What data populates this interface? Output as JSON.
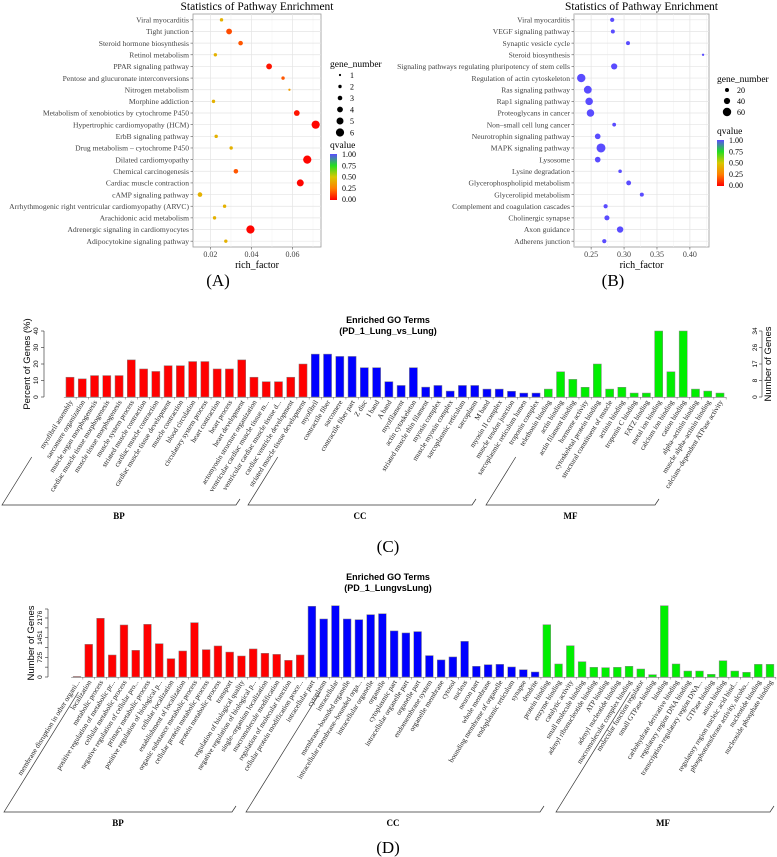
{
  "captions": {
    "a": "(A)",
    "b": "(B)",
    "c": "(C)",
    "d": "(D)"
  },
  "chart_data": [
    {
      "id": "A",
      "type": "scatter",
      "title": "Statistics of Pathway Enrichment",
      "xlabel": "rich_factor",
      "xlim": [
        0.0115,
        0.0739
      ],
      "xticks": [
        0.02,
        0.04,
        0.06
      ],
      "xtick_labels": [
        "0.02",
        "0.04",
        "0.06"
      ],
      "size_legend_title": "gene_number",
      "size_legend": [
        1,
        2,
        3,
        4,
        5,
        6
      ],
      "color_legend_title": "qvalue",
      "color_legend": [
        "1.00",
        "0.75",
        "0.50",
        "0.25",
        "0.00"
      ],
      "grid": true,
      "points": [
        {
          "pathway": "Viral myocarditis",
          "rich_factor": 0.0254,
          "gene_number": 2,
          "qvalue": 0.42
        },
        {
          "pathway": "Tight junction",
          "rich_factor": 0.0291,
          "gene_number": 4,
          "qvalue": 0.15
        },
        {
          "pathway": "Steroid hormone biosynthesis",
          "rich_factor": 0.0347,
          "gene_number": 3,
          "qvalue": 0.17
        },
        {
          "pathway": "Retinol metabolism",
          "rich_factor": 0.0224,
          "gene_number": 2,
          "qvalue": 0.42
        },
        {
          "pathway": "PPAR signaling pathway",
          "rich_factor": 0.0486,
          "gene_number": 4,
          "qvalue": 0.04
        },
        {
          "pathway": "Pentose and glucuronate interconversions",
          "rich_factor": 0.0554,
          "gene_number": 2,
          "qvalue": 0.17
        },
        {
          "pathway": "Nitrogen metabolism",
          "rich_factor": 0.0585,
          "gene_number": 1,
          "qvalue": 0.35
        },
        {
          "pathway": "Morphine addiction",
          "rich_factor": 0.0215,
          "gene_number": 2,
          "qvalue": 0.42
        },
        {
          "pathway": "Metabolism of xenobiotics by cytochrome P450",
          "rich_factor": 0.0621,
          "gene_number": 4,
          "qvalue": 0.04
        },
        {
          "pathway": "Hypertrophic cardiomyopathy (HCM)",
          "rich_factor": 0.0713,
          "gene_number": 6,
          "qvalue": 0.01
        },
        {
          "pathway": "ErbB signaling pathway",
          "rich_factor": 0.0228,
          "gene_number": 2,
          "qvalue": 0.42
        },
        {
          "pathway": "Drug metabolism – cytochrome P450",
          "rich_factor": 0.0301,
          "gene_number": 2,
          "qvalue": 0.42
        },
        {
          "pathway": "Dilated cardiomyopathy",
          "rich_factor": 0.0672,
          "gene_number": 6,
          "qvalue": 0.01
        },
        {
          "pathway": "Chemical carcinogenesis",
          "rich_factor": 0.0324,
          "gene_number": 3,
          "qvalue": 0.17
        },
        {
          "pathway": "Cardiac muscle contraction",
          "rich_factor": 0.0638,
          "gene_number": 5,
          "qvalue": 0.01
        },
        {
          "pathway": "cAMP signaling pathway",
          "rich_factor": 0.0149,
          "gene_number": 3,
          "qvalue": 0.42
        },
        {
          "pathway": "Arrhythmogenic right ventricular cardiomyopathy (ARVC)",
          "rich_factor": 0.0269,
          "gene_number": 2,
          "qvalue": 0.42
        },
        {
          "pathway": "Arachidonic acid metabolism",
          "rich_factor": 0.022,
          "gene_number": 2,
          "qvalue": 0.42
        },
        {
          "pathway": "Adrenergic signaling in cardiomyocytes",
          "rich_factor": 0.0395,
          "gene_number": 6,
          "qvalue": 0.01
        },
        {
          "pathway": "Adipocytokine signaling pathway",
          "rich_factor": 0.0275,
          "gene_number": 2,
          "qvalue": 0.42
        }
      ]
    },
    {
      "id": "B",
      "type": "scatter",
      "title": "Statistics of Pathway Enrichment",
      "xlabel": "rich_factor",
      "xlim": [
        0.224,
        0.429
      ],
      "xticks": [
        0.25,
        0.3,
        0.35,
        0.4
      ],
      "xtick_labels": [
        "0.25",
        "0.30",
        "0.35",
        "0.40"
      ],
      "size_legend_title": "gene_number",
      "size_legend": [
        20,
        40,
        60
      ],
      "color_legend_title": "qvalue",
      "color_legend": [
        "1.00",
        "0.75",
        "0.50",
        "0.25",
        "0.00"
      ],
      "grid": true,
      "points": [
        {
          "pathway": "Viral myocarditis",
          "rich_factor": 0.282,
          "gene_number": 22,
          "qvalue": 1.0
        },
        {
          "pathway": "VEGF signaling pathway",
          "rich_factor": 0.283,
          "gene_number": 20,
          "qvalue": 1.0
        },
        {
          "pathway": "Synaptic vesicle cycle",
          "rich_factor": 0.306,
          "gene_number": 20,
          "qvalue": 1.0
        },
        {
          "pathway": "Steroid biosynthesis",
          "rich_factor": 0.42,
          "gene_number": 5,
          "qvalue": 1.0
        },
        {
          "pathway": "Signaling pathways regulating pluripotency of stem cells",
          "rich_factor": 0.285,
          "gene_number": 40,
          "qvalue": 1.0
        },
        {
          "pathway": "Regulation of actin cytoskeleton",
          "rich_factor": 0.235,
          "gene_number": 60,
          "qvalue": 1.0
        },
        {
          "pathway": "Ras signaling pathway",
          "rich_factor": 0.245,
          "gene_number": 55,
          "qvalue": 1.0
        },
        {
          "pathway": "Rap1 signaling pathway",
          "rich_factor": 0.247,
          "gene_number": 52,
          "qvalue": 1.0
        },
        {
          "pathway": "Proteoglycans in cancer",
          "rich_factor": 0.249,
          "gene_number": 52,
          "qvalue": 1.0
        },
        {
          "pathway": "Non–small cell lung cancer",
          "rich_factor": 0.285,
          "gene_number": 18,
          "qvalue": 1.0
        },
        {
          "pathway": "Neurotrophin signaling pathway",
          "rich_factor": 0.26,
          "gene_number": 35,
          "qvalue": 1.0
        },
        {
          "pathway": "MAPK signaling pathway",
          "rich_factor": 0.265,
          "gene_number": 65,
          "qvalue": 1.0
        },
        {
          "pathway": "Lysosome",
          "rich_factor": 0.26,
          "gene_number": 35,
          "qvalue": 1.0
        },
        {
          "pathway": "Lysine degradation",
          "rich_factor": 0.294,
          "gene_number": 16,
          "qvalue": 1.0
        },
        {
          "pathway": "Glycerophospholipid metabolism",
          "rich_factor": 0.307,
          "gene_number": 28,
          "qvalue": 1.0
        },
        {
          "pathway": "Glycerolipid metabolism",
          "rich_factor": 0.327,
          "gene_number": 20,
          "qvalue": 1.0
        },
        {
          "pathway": "Complement and coagulation cascades",
          "rich_factor": 0.272,
          "gene_number": 22,
          "qvalue": 1.0
        },
        {
          "pathway": "Cholinergic synapse",
          "rich_factor": 0.274,
          "gene_number": 30,
          "qvalue": 1.0
        },
        {
          "pathway": "Axon guidance",
          "rich_factor": 0.294,
          "gene_number": 42,
          "qvalue": 1.0
        },
        {
          "pathway": "Adherens junction",
          "rich_factor": 0.27,
          "gene_number": 22,
          "qvalue": 1.0
        }
      ]
    },
    {
      "id": "C",
      "type": "bar",
      "title": "Enriched GO Terms",
      "subtitle": "(PD_1_Lung_vs_Lung)",
      "ylabel": "Percent of Genes (%)",
      "ylabel_right": "Number of Genes",
      "ylim": [
        0,
        40
      ],
      "yticks": [
        "0",
        "10",
        "20",
        "30",
        "40"
      ],
      "yticks_right": [
        "0",
        "8",
        "17",
        "26",
        "34"
      ],
      "groups": [
        {
          "name": "BP",
          "color": "#ff0000",
          "bars": [
            [
              "myofibril assembly",
              12
            ],
            [
              "sarcomere organization",
              11
            ],
            [
              "muscle organ morphogenesis",
              13
            ],
            [
              "cardiac muscle tissue morphogenesis",
              13
            ],
            [
              "muscle tissue morphogenesis",
              13
            ],
            [
              "muscle system process",
              22.5
            ],
            [
              "striated muscle contraction",
              17
            ],
            [
              "cardiac muscle contraction",
              15.5
            ],
            [
              "cardiac muscle tissue development",
              19
            ],
            [
              "muscle contraction",
              19
            ],
            [
              "blood circulation",
              21.5
            ],
            [
              "circulatory system process",
              21.5
            ],
            [
              "heart contraction",
              17
            ],
            [
              "heart process",
              17
            ],
            [
              "heart development",
              22.5
            ],
            [
              "actomyosin structure organization",
              12
            ],
            [
              "ventricular cardiac muscle tissue m...",
              9.3
            ],
            [
              "ventricular cardiac muscle tissue d...",
              9.3
            ],
            [
              "cardiac ventricle development",
              12
            ],
            [
              "striated muscle tissue development",
              20
            ]
          ]
        },
        {
          "name": "CC",
          "color": "#0000ff",
          "bars": [
            [
              "myofibril",
              26
            ],
            [
              "contractile fiber",
              26
            ],
            [
              "sarcomere",
              24.6
            ],
            [
              "contractile fiber part",
              24.6
            ],
            [
              "Z disc",
              17.8
            ],
            [
              "I band",
              17.8
            ],
            [
              "A band",
              9.3
            ],
            [
              "myofilament",
              7
            ],
            [
              "actin cytoskeleton",
              17.8
            ],
            [
              "striated muscle thin filament",
              6
            ],
            [
              "myosin complex",
              7
            ],
            [
              "muscle myosin complex",
              3.6
            ],
            [
              "sarcoplasmic reticulum",
              7
            ],
            [
              "sarcoplasm",
              7
            ],
            [
              "M band",
              4.8
            ],
            [
              "myosin II complex",
              4.8
            ],
            [
              "muscle tendon junction",
              3.5
            ],
            [
              "sarcoplasmic reticulum lumen",
              2.4
            ],
            [
              "troponin complex",
              2.4
            ]
          ]
        },
        {
          "name": "MF",
          "color": "#00ee00",
          "bars": [
            [
              "telethonin binding",
              4.8
            ],
            [
              "actin binding",
              15.3
            ],
            [
              "actin filament binding",
              10.7
            ],
            [
              "hormone activity",
              5.9
            ],
            [
              "cytoskeletal protein binding",
              20
            ],
            [
              "structural constituent of muscle",
              4.8
            ],
            [
              "actinin binding",
              5.9
            ],
            [
              "troponin C binding",
              2.4
            ],
            [
              "FATZ binding",
              2.4
            ],
            [
              "metal ion binding",
              40
            ],
            [
              "calcium ion binding",
              15.3
            ],
            [
              "cation binding",
              40
            ],
            [
              "alpha–actinin binding",
              4.8
            ],
            [
              "muscle alpha–actinin binding",
              3.6
            ],
            [
              "calcium–dependent ATPase activity",
              2.4
            ]
          ]
        }
      ]
    },
    {
      "id": "D",
      "type": "bar",
      "title": "Enriched GO Terms",
      "subtitle": "(PD_1_LungvsLung)",
      "ylabel": "Number of Genes",
      "ylim": [
        0,
        2508
      ],
      "yticks": [
        0,
        725,
        1451,
        2176
      ],
      "groups": [
        {
          "name": "BP",
          "color": "#ff0000",
          "bars": [
            [
              "membrane disruption in other organi...",
              20
            ],
            [
              "localization",
              1205
            ],
            [
              "metabolic process",
              2165
            ],
            [
              "positive regulation of metabolic pr...",
              812
            ],
            [
              "cellular metabolic process",
              1919
            ],
            [
              "negative regulation of cellular pro...",
              984
            ],
            [
              "primary metabolic process",
              1943
            ],
            [
              "positive regulation of biological p...",
              1230
            ],
            [
              "cellular localization",
              677
            ],
            [
              "establishment of localization",
              960
            ],
            [
              "organic substance metabolic process",
              2005
            ],
            [
              "cellular protein metabolic process",
              1010
            ],
            [
              "protein metabolic process",
              1145
            ],
            [
              "transport",
              920
            ],
            [
              "regulation of biological quality",
              775
            ],
            [
              "negative regulation of biological p...",
              1035
            ],
            [
              "single–organism localization",
              875
            ],
            [
              "macromolecule modification",
              835
            ],
            [
              "regulation of molecular function",
              615
            ],
            [
              "cellular protein modification proce...",
              812
            ]
          ]
        },
        {
          "name": "CC",
          "color": "#0000ff",
          "bars": [
            [
              "intracellular part",
              2610
            ],
            [
              "cytoplasm",
              2140
            ],
            [
              "intracellular",
              2630
            ],
            [
              "membrane–bounded organelle",
              2140
            ],
            [
              "intracellular membrane–bounded orga...",
              2115
            ],
            [
              "intracellular organelle",
              2300
            ],
            [
              "organelle",
              2335
            ],
            [
              "cytoplasmic part",
              1700
            ],
            [
              "intracellular organelle part",
              1625
            ],
            [
              "organelle part",
              1675
            ],
            [
              "endomembrane system",
              790
            ],
            [
              "organelle membrane",
              630
            ],
            [
              "cytosol",
              740
            ],
            [
              "nucleus",
              1315
            ],
            [
              "neuron part",
              395
            ],
            [
              "whole membrane",
              455
            ],
            [
              "bounding membrane of organelle",
              467
            ],
            [
              "endoplasmic reticulum",
              370
            ],
            [
              "synapse",
              270
            ],
            [
              "dendrite",
              185
            ]
          ]
        },
        {
          "name": "MF",
          "color": "#00ee00",
          "bars": [
            [
              "protein binding",
              1930
            ],
            [
              "enzyme binding",
              480
            ],
            [
              "catalytic activity",
              1155
            ],
            [
              "small molecule binding",
              565
            ],
            [
              "adenyl ribonucleotide binding",
              357
            ],
            [
              "ATP binding",
              345
            ],
            [
              "adenyl nucleotide binding",
              357
            ],
            [
              "macromolecular complex binding",
              395
            ],
            [
              "molecular function regulator",
              295
            ],
            [
              "small GTPase binding",
              86
            ],
            [
              "binding",
              2630
            ],
            [
              "carbohydrate derivative binding",
              480
            ],
            [
              "regulatory region DNA binding",
              220
            ],
            [
              "transcription regulatory region DNA...",
              220
            ],
            [
              "GTPase binding",
              98
            ],
            [
              "anion binding",
              600
            ],
            [
              "regulatory region nucleic acid bind...",
              220
            ],
            [
              "phosphotransferase activity, alcoho...",
              172
            ],
            [
              "nucleotide binding",
              467
            ],
            [
              "nucleoside phosphate binding",
              467
            ]
          ]
        }
      ]
    }
  ]
}
